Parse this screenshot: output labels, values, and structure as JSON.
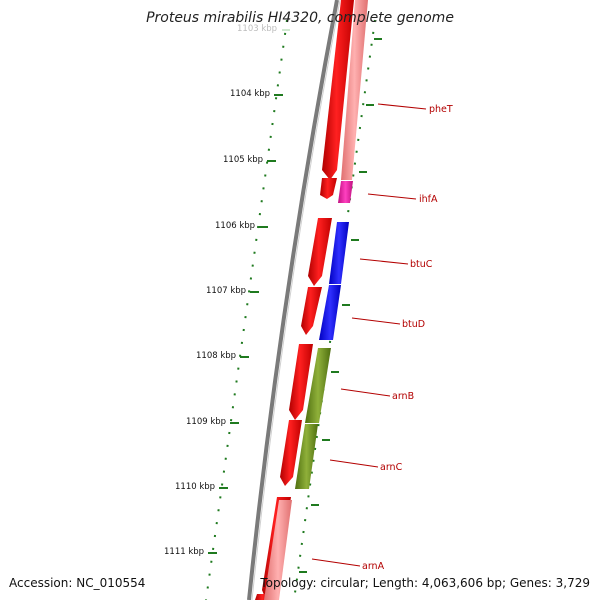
{
  "title": "Proteus mirabilis HI4320, complete genome",
  "footer": {
    "accession": "Accession: NC_010554",
    "summary": "Topology: circular; Length: 4,063,606 bp; Genes: 3,729"
  },
  "ticks": [
    "1103 kbp",
    "1104 kbp",
    "1105 kbp",
    "1106 kbp",
    "1107 kbp",
    "1108 kbp",
    "1109 kbp",
    "1110 kbp",
    "1111 kbp"
  ],
  "genes": [
    {
      "name": "pheT",
      "strand_color": "#ef8a8a"
    },
    {
      "name": "ihfA",
      "strand_color": "#e31aa0"
    },
    {
      "name": "btuC",
      "strand_color": "#1f1fff"
    },
    {
      "name": "btuD",
      "strand_color": "#1f1fff"
    },
    {
      "name": "arnB",
      "strand_color": "#6f8f1f"
    },
    {
      "name": "arnC",
      "strand_color": "#6f8f1f"
    },
    {
      "name": "arnA",
      "strand_color": "#f08a8a"
    }
  ],
  "colors": {
    "cds": "#ff0000",
    "backbone": "#7a7a7a",
    "ticks": "#1f7a1f",
    "label": "#b30000"
  }
}
